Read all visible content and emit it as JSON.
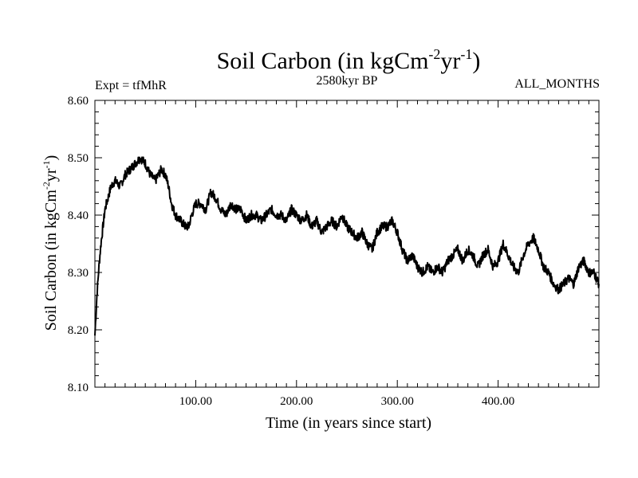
{
  "chart_data": {
    "type": "line",
    "title": {
      "main": "Soil Carbon (in kgCm",
      "sup1": "-2",
      "mid": "yr",
      "sup2": "-1",
      "end": ")"
    },
    "subtitle_left": "Expt = tfMhR",
    "subtitle_center": "2580kyr BP",
    "subtitle_right": "ALL_MONTHS",
    "xlabel": "Time (in years since start)",
    "ylabel": {
      "main": "Soil Carbon (in kgCm",
      "sup1": "-2",
      "mid": "yr",
      "sup2": "-1",
      "end": ")"
    },
    "xlim": [
      0,
      500
    ],
    "ylim": [
      8.1,
      8.6
    ],
    "x_ticks": [
      100,
      200,
      300,
      400
    ],
    "x_tick_labels": [
      "100.00",
      "200.00",
      "300.00",
      "400.00"
    ],
    "y_ticks": [
      8.1,
      8.2,
      8.3,
      8.4,
      8.5,
      8.6
    ],
    "y_tick_labels": [
      "8.10",
      "8.20",
      "8.30",
      "8.40",
      "8.50",
      "8.60"
    ],
    "series": [
      {
        "name": "Soil Carbon",
        "x": [
          0,
          2,
          4,
          6,
          8,
          10,
          13,
          16,
          20,
          25,
          30,
          35,
          40,
          45,
          50,
          55,
          60,
          63,
          66,
          70,
          73,
          76,
          80,
          85,
          90,
          93,
          96,
          100,
          105,
          110,
          115,
          120,
          125,
          130,
          135,
          140,
          145,
          150,
          155,
          160,
          165,
          170,
          175,
          180,
          185,
          190,
          195,
          200,
          205,
          210,
          215,
          220,
          225,
          230,
          235,
          240,
          245,
          250,
          255,
          260,
          265,
          270,
          275,
          280,
          285,
          290,
          295,
          300,
          305,
          310,
          315,
          320,
          325,
          330,
          335,
          340,
          345,
          350,
          355,
          360,
          365,
          370,
          375,
          380,
          385,
          390,
          395,
          400,
          405,
          410,
          415,
          420,
          425,
          430,
          435,
          440,
          445,
          450,
          455,
          460,
          465,
          470,
          475,
          480,
          485,
          490,
          495,
          500
        ],
        "y": [
          8.19,
          8.26,
          8.31,
          8.35,
          8.38,
          8.41,
          8.43,
          8.45,
          8.46,
          8.45,
          8.47,
          8.48,
          8.49,
          8.5,
          8.49,
          8.47,
          8.46,
          8.47,
          8.48,
          8.47,
          8.45,
          8.42,
          8.4,
          8.39,
          8.38,
          8.38,
          8.4,
          8.42,
          8.42,
          8.41,
          8.44,
          8.43,
          8.41,
          8.4,
          8.42,
          8.41,
          8.41,
          8.39,
          8.4,
          8.4,
          8.39,
          8.4,
          8.41,
          8.4,
          8.4,
          8.39,
          8.41,
          8.4,
          8.39,
          8.4,
          8.38,
          8.39,
          8.37,
          8.38,
          8.39,
          8.38,
          8.4,
          8.38,
          8.37,
          8.36,
          8.37,
          8.35,
          8.34,
          8.37,
          8.38,
          8.38,
          8.39,
          8.37,
          8.34,
          8.32,
          8.33,
          8.31,
          8.3,
          8.31,
          8.3,
          8.31,
          8.3,
          8.32,
          8.33,
          8.34,
          8.32,
          8.34,
          8.33,
          8.31,
          8.33,
          8.34,
          8.31,
          8.32,
          8.35,
          8.33,
          8.31,
          8.3,
          8.33,
          8.35,
          8.36,
          8.34,
          8.31,
          8.3,
          8.28,
          8.27,
          8.28,
          8.29,
          8.28,
          8.31,
          8.32,
          8.3,
          8.3,
          8.28
        ]
      }
    ]
  }
}
